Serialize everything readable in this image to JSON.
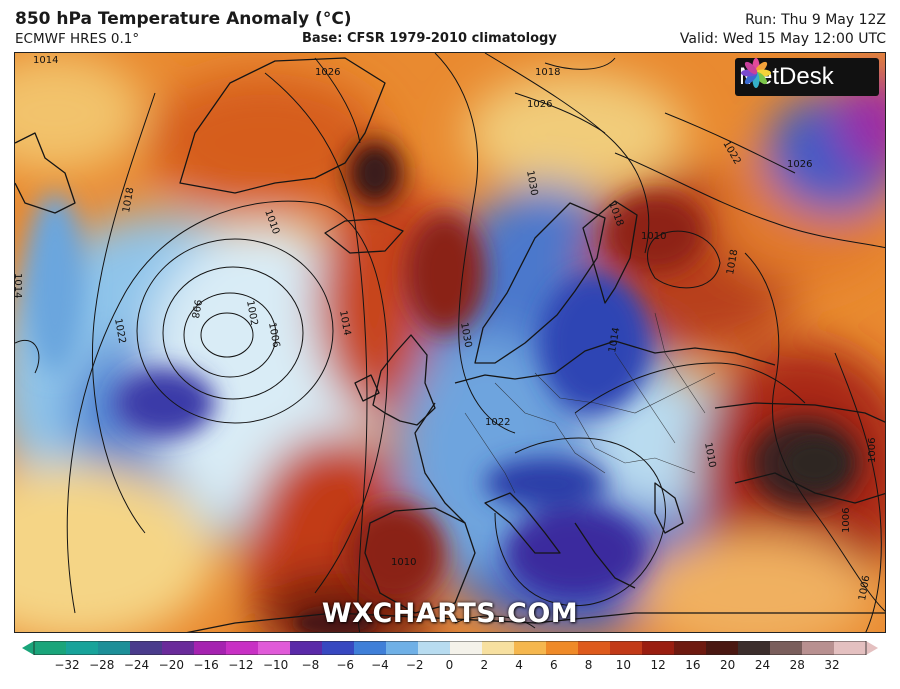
{
  "header": {
    "title": "850 hPa Temperature Anomaly (°C)",
    "model": "ECMWF HRES 0.1°",
    "base": "Base: CFSR 1979-2010 climatology",
    "run": "Run: Thu 9 May 12Z",
    "valid": "Valid: Wed 15 May 12:00 UTC"
  },
  "branding": {
    "logo_text": "MetDesk",
    "watermark": "WXCHARTS.COM"
  },
  "isobar_labels": [
    "1014",
    "1026",
    "1018",
    "1026",
    "1022",
    "1026",
    "1018",
    "1010",
    "1002",
    "1006",
    "998",
    "1022",
    "1014",
    "1018",
    "1030",
    "1030",
    "1010",
    "1018",
    "1014",
    "1022",
    "1014",
    "1010",
    "1006",
    "1006",
    "1006",
    "1010"
  ],
  "colorbar": {
    "ticks": [
      "−32",
      "−28",
      "−24",
      "−20",
      "−16",
      "−12",
      "−10",
      "−8",
      "−6",
      "−4",
      "−2",
      "0",
      "2",
      "4",
      "6",
      "8",
      "10",
      "12",
      "16",
      "20",
      "24",
      "28",
      "32"
    ],
    "colors": [
      "#1aa57a",
      "#18a39a",
      "#1d8f98",
      "#4a3c8c",
      "#6a2b9a",
      "#a522b0",
      "#c830c4",
      "#e05ad8",
      "#5a2aa8",
      "#3748c0",
      "#3f7fd8",
      "#6fb0e6",
      "#b8dcf0",
      "#f4f2ea",
      "#f7e0a0",
      "#f5b74e",
      "#ef8a28",
      "#de5a1c",
      "#c23a18",
      "#9a1e10",
      "#6e1a10",
      "#4a1812",
      "#3c2e2c",
      "#7a5e5c",
      "#b89090",
      "#e4c0c0"
    ]
  }
}
